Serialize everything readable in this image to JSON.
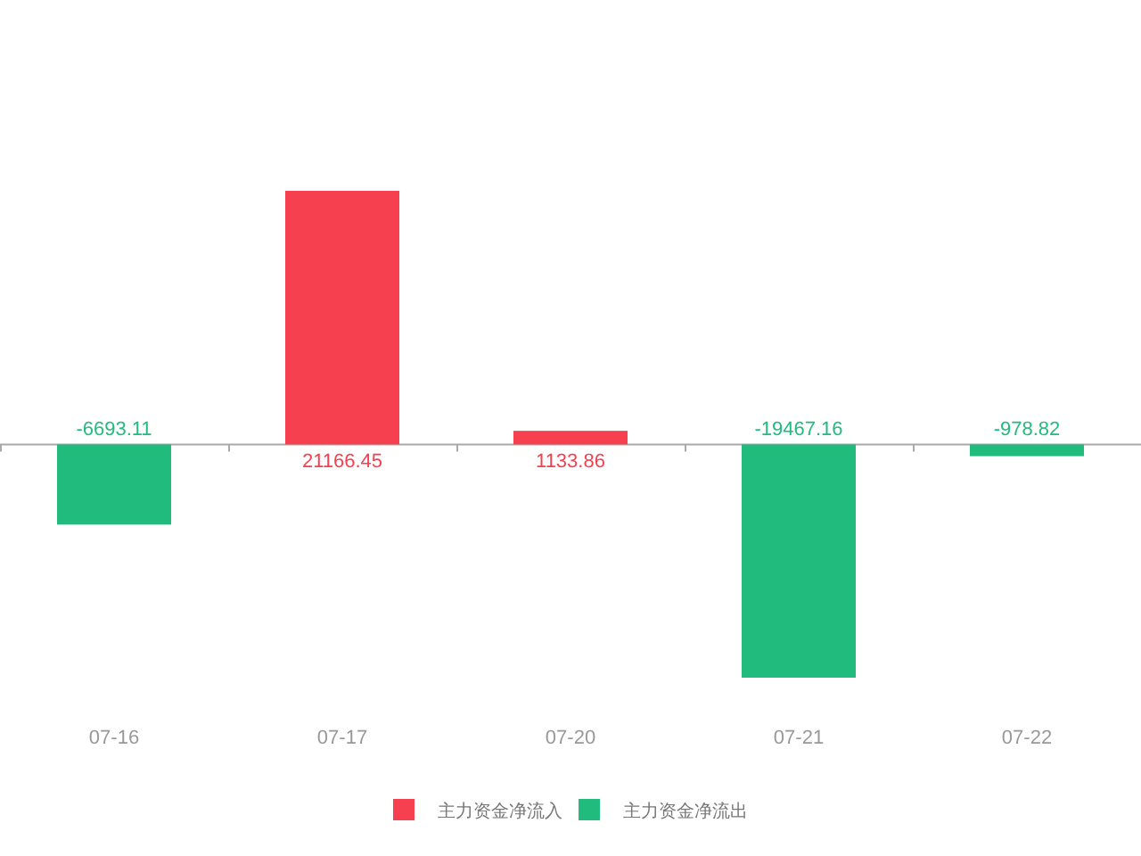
{
  "chart_data": {
    "type": "bar",
    "categories": [
      "07-16",
      "07-17",
      "07-20",
      "07-21",
      "07-22"
    ],
    "stacked": true,
    "series": [
      {
        "name": "主力资金净流入",
        "color": "#f6404f",
        "values": [
          null,
          21166.45,
          1133.86,
          null,
          null
        ]
      },
      {
        "name": "主力资金净流出",
        "color": "#21bb7e",
        "values": [
          -6693.11,
          null,
          null,
          -19467.16,
          -978.82
        ]
      }
    ],
    "data_labels": true,
    "legend": "bottom"
  }
}
